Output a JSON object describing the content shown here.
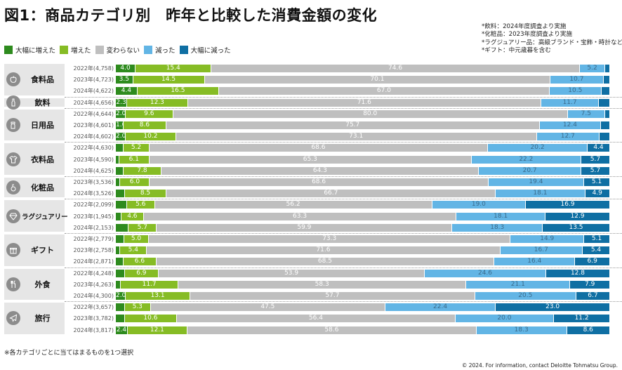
{
  "header": {
    "title": "図1：商品カテゴリ別　昨年と比較した消費金額の変化",
    "notes": [
      "*飲料：2024年度調査より実施",
      "*化粧品：2023年度調査より実施",
      "*ラグジュアリー品：高級ブランド・宝飾・時計など",
      "*ギフト：中元歳暮を含む"
    ]
  },
  "footer": {
    "footnote": "※各カテゴリごとに当てはまるものを1つ選択",
    "copyright": "© 2024. For information, contact Deloitte Tohmatsu Group."
  },
  "chart_data": {
    "type": "bar",
    "orientation": "horizontal-stacked-100",
    "title": "図1：商品カテゴリ別　昨年と比較した消費金額の変化",
    "xlabel": "",
    "ylabel": "",
    "xlim": [
      0,
      100
    ],
    "legend_position": "top-left",
    "series": [
      {
        "name": "大幅に増えた",
        "color": "#2e8b1e",
        "text_color": "#ffffff"
      },
      {
        "name": "増えた",
        "color": "#86bc25",
        "text_color": "#ffffff"
      },
      {
        "name": "変わらない",
        "color": "#bfbfbf",
        "text_color": "#ffffff"
      },
      {
        "name": "減った",
        "color": "#62b5e5",
        "text_color": "#3a6b8c"
      },
      {
        "name": "大幅に減った",
        "color": "#0f6fa3",
        "text_color": "#ffffff"
      }
    ],
    "groups": [
      {
        "category": "食料品",
        "icon": "apple-icon",
        "rows": [
          {
            "label": "2022年(4,758)",
            "values": [
              4.0,
              15.4,
              74.6,
              5.2,
              0.8
            ],
            "show": [
              true,
              true,
              true,
              true,
              false
            ]
          },
          {
            "label": "2023年(4,723)",
            "values": [
              3.5,
              14.5,
              70.1,
              10.7,
              1.2
            ],
            "show": [
              true,
              true,
              true,
              true,
              false
            ]
          },
          {
            "label": "2024年(4,622)",
            "values": [
              4.4,
              16.5,
              67.0,
              10.5,
              1.6
            ],
            "show": [
              true,
              true,
              true,
              true,
              false
            ]
          }
        ]
      },
      {
        "category": "飲料",
        "icon": "bottle-icon",
        "rows": [
          {
            "label": "2024年(4,656)",
            "values": [
              2.3,
              12.3,
              71.6,
              11.7,
              2.1
            ],
            "show": [
              true,
              true,
              true,
              true,
              false
            ]
          }
        ]
      },
      {
        "category": "日用品",
        "icon": "spray-bottle-icon",
        "rows": [
          {
            "label": "2022年(4,644)",
            "values": [
              2.0,
              9.6,
              80.0,
              7.5,
              0.9
            ],
            "show": [
              true,
              true,
              true,
              true,
              false
            ]
          },
          {
            "label": "2023年(4,601)",
            "values": [
              1.6,
              8.6,
              75.7,
              12.4,
              1.7
            ],
            "show": [
              true,
              true,
              true,
              true,
              false
            ]
          },
          {
            "label": "2024年(4,602)",
            "values": [
              2.0,
              10.2,
              73.1,
              12.7,
              2.0
            ],
            "show": [
              true,
              true,
              true,
              true,
              false
            ]
          }
        ]
      },
      {
        "category": "衣料品",
        "icon": "shirt-icon",
        "rows": [
          {
            "label": "2022年(4,630)",
            "values": [
              1.6,
              5.2,
              68.6,
              20.2,
              4.4
            ],
            "show": [
              false,
              true,
              true,
              true,
              true
            ]
          },
          {
            "label": "2023年(4,590)",
            "values": [
              0.7,
              6.1,
              65.3,
              22.2,
              5.7
            ],
            "show": [
              false,
              true,
              true,
              true,
              true
            ]
          },
          {
            "label": "2024年(4,625)",
            "values": [
              1.5,
              7.8,
              64.3,
              20.7,
              5.7
            ],
            "show": [
              false,
              true,
              true,
              true,
              true
            ]
          }
        ]
      },
      {
        "category": "化粧品",
        "icon": "cosmetics-icon",
        "rows": [
          {
            "label": "2023年(3,536)",
            "values": [
              0.9,
              6.0,
              68.6,
              19.4,
              5.1
            ],
            "show": [
              false,
              true,
              true,
              true,
              true
            ]
          },
          {
            "label": "2024年(3,526)",
            "values": [
              1.8,
              8.5,
              66.7,
              18.1,
              4.9
            ],
            "show": [
              false,
              true,
              true,
              true,
              true
            ]
          }
        ]
      },
      {
        "category": "ラグジュアリー",
        "icon": "diamond-icon",
        "rows": [
          {
            "label": "2022年(2,099)",
            "values": [
              2.3,
              5.6,
              56.2,
              19.0,
              16.9
            ],
            "show": [
              false,
              true,
              true,
              true,
              true
            ]
          },
          {
            "label": "2023年(1,945)",
            "values": [
              1.1,
              4.6,
              63.3,
              18.1,
              12.9
            ],
            "show": [
              false,
              true,
              true,
              true,
              true
            ]
          },
          {
            "label": "2024年(2,153)",
            "values": [
              2.6,
              5.7,
              59.9,
              18.3,
              13.5
            ],
            "show": [
              false,
              true,
              true,
              true,
              true
            ]
          }
        ]
      },
      {
        "category": "ギフト",
        "icon": "gift-icon",
        "rows": [
          {
            "label": "2022年(2,779)",
            "values": [
              1.7,
              5.0,
              73.3,
              14.9,
              5.1
            ],
            "show": [
              false,
              true,
              true,
              true,
              true
            ]
          },
          {
            "label": "2023年(2,758)",
            "values": [
              0.9,
              5.4,
              71.6,
              16.7,
              5.4
            ],
            "show": [
              false,
              true,
              true,
              true,
              true
            ]
          },
          {
            "label": "2024年(2,871)",
            "values": [
              1.6,
              6.6,
              68.5,
              16.4,
              6.9
            ],
            "show": [
              false,
              true,
              true,
              true,
              true
            ]
          }
        ]
      },
      {
        "category": "外食",
        "icon": "cutlery-icon",
        "rows": [
          {
            "label": "2022年(4,248)",
            "values": [
              1.8,
              6.9,
              53.9,
              24.6,
              12.8
            ],
            "show": [
              false,
              true,
              true,
              true,
              true
            ]
          },
          {
            "label": "2023年(4,263)",
            "values": [
              1.0,
              11.7,
              58.3,
              21.1,
              7.9
            ],
            "show": [
              false,
              true,
              true,
              true,
              true
            ]
          },
          {
            "label": "2024年(4,300)",
            "values": [
              2.0,
              13.1,
              57.7,
              20.5,
              6.7
            ],
            "show": [
              true,
              true,
              true,
              true,
              true
            ]
          }
        ]
      },
      {
        "category": "旅行",
        "icon": "airplane-icon",
        "rows": [
          {
            "label": "2022年(3,657)",
            "values": [
              1.8,
              5.3,
              47.5,
              22.4,
              23.0
            ],
            "show": [
              false,
              true,
              true,
              true,
              true
            ]
          },
          {
            "label": "2023年(3,782)",
            "values": [
              1.8,
              10.6,
              56.4,
              20.0,
              11.2
            ],
            "show": [
              false,
              true,
              true,
              true,
              true
            ]
          },
          {
            "label": "2024年(3,817)",
            "values": [
              2.4,
              12.1,
              58.6,
              18.3,
              8.6
            ],
            "show": [
              true,
              true,
              true,
              true,
              true
            ]
          }
        ]
      }
    ]
  }
}
